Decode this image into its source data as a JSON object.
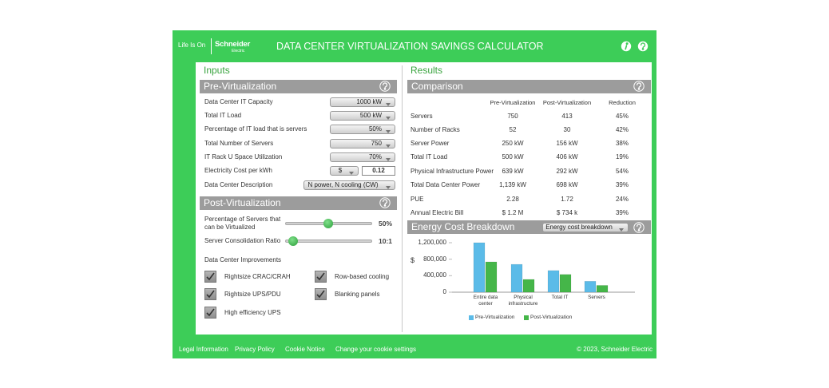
{
  "header": {
    "brand": "Life Is On",
    "logo": "Schneider",
    "logo_sub": "Electric",
    "title": "DATA CENTER VIRTUALIZATION SAVINGS CALCULATOR"
  },
  "inputs": {
    "title": "Inputs",
    "pre": {
      "title": "Pre-Virtualization",
      "rows": [
        {
          "label": "Data Center IT Capacity",
          "value": "1000 kW"
        },
        {
          "label": "Total IT Load",
          "value": "500 kW"
        },
        {
          "label": "Percentage of IT load that is servers",
          "value": "50%"
        },
        {
          "label": "Total Number of Servers",
          "value": "750"
        },
        {
          "label": "IT Rack U Space Utilization",
          "value": "70%"
        },
        {
          "label": "Electricity Cost per kWh",
          "unit": "$",
          "value": "0.12"
        },
        {
          "label": "Data Center Description",
          "value": "N power, N cooling (CW)"
        }
      ]
    },
    "post": {
      "title": "Post-Virtualization",
      "sliders": [
        {
          "label": "Percentage of Servers that can be Virtualized",
          "value": "50%"
        },
        {
          "label": "Server Consolidation Ratio",
          "value": "10:1"
        }
      ],
      "improvements_title": "Data Center Improvements",
      "improvements": [
        "Rightsize CRAC/CRAH",
        "Row-based cooling",
        "Rightsize UPS/PDU",
        "Blanking panels",
        "High efficiency UPS"
      ]
    }
  },
  "results": {
    "title": "Results",
    "comparison_title": "Comparison",
    "table": {
      "columns": [
        "Pre-Virtualization",
        "Post-Virtualization",
        "Reduction"
      ],
      "rows": [
        [
          "Servers",
          "750",
          "413",
          "45%"
        ],
        [
          "Number of Racks",
          "52",
          "30",
          "42%"
        ],
        [
          "Server Power",
          "250 kW",
          "156 kW",
          "38%"
        ],
        [
          "Total IT Load",
          "500 kW",
          "406 kW",
          "19%"
        ],
        [
          "Physical Infrastructure Power",
          "639 kW",
          "292 kW",
          "54%"
        ],
        [
          "Total Data Center Power",
          "1,139 kW",
          "698 kW",
          "39%"
        ],
        [
          "PUE",
          "2.28",
          "1.72",
          "24%"
        ],
        [
          "Annual Electric Bill",
          "$ 1.2 M",
          "$ 734 k",
          "39%"
        ]
      ]
    },
    "chart_dropdown": "Energy cost breakdown"
  },
  "chart_data": {
    "type": "bar",
    "title": "Energy Cost Breakdown",
    "y_label": "$",
    "categories": [
      "Entire data center",
      "Physical infrastructure",
      "Total IT",
      "Servers"
    ],
    "series": [
      {
        "name": "Pre-Virtualization",
        "color": "#5bbbe8",
        "values": [
          1200000,
          675000,
          525000,
          265000
        ]
      },
      {
        "name": "Post-Virtualization",
        "color": "#45b649",
        "values": [
          735000,
          310000,
          430000,
          165000
        ]
      }
    ],
    "ylim": [
      0,
      1200000
    ],
    "yticks": [
      0,
      {
        "value": 400000,
        "label": "400,000"
      },
      {
        "value": 800000,
        "label": "800,000"
      },
      {
        "value": 1200000,
        "label": "1,200,000"
      }
    ]
  },
  "footer": {
    "links": [
      "Legal Information",
      "Privacy Policy",
      "Cookie Notice",
      "Change your cookie settings"
    ],
    "copyright": "© 2023, Schneider Electric"
  }
}
